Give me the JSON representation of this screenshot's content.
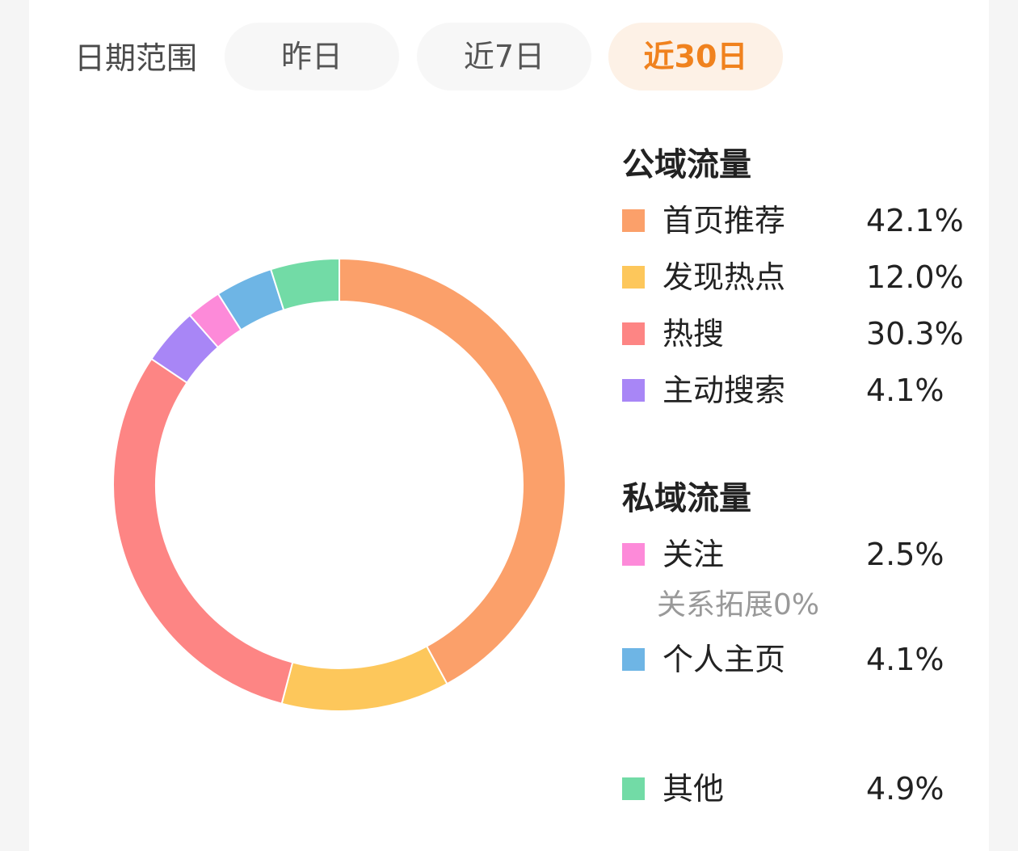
{
  "date_range": {
    "label": "日期范围",
    "options": [
      {
        "label": "昨日",
        "selected": false
      },
      {
        "label": "近7日",
        "selected": false
      },
      {
        "label": "近30日",
        "selected": true
      }
    ],
    "accent_color": "#f0821e"
  },
  "legend": {
    "public_title": "公域流量",
    "private_title": "私域流量",
    "items": [
      {
        "label": "首页推荐",
        "value": "42.1%",
        "color": "#fba06a"
      },
      {
        "label": "发现热点",
        "value": "12.0%",
        "color": "#fdc75b"
      },
      {
        "label": "热搜",
        "value": "30.3%",
        "color": "#fd8584"
      },
      {
        "label": "主动搜索",
        "value": "4.1%",
        "color": "#a886f6"
      },
      {
        "label": "关注",
        "value": "2.5%",
        "color": "#fd8ad9"
      },
      {
        "label": "个人主页",
        "value": "4.1%",
        "color": "#6eb5e5"
      },
      {
        "label": "其他",
        "value": "4.9%",
        "color": "#72dba6"
      }
    ],
    "sub_note": "关系拓展0%"
  },
  "chart_data": {
    "type": "pie",
    "donut": true,
    "categories": [
      "首页推荐",
      "发现热点",
      "热搜",
      "主动搜索",
      "关注",
      "个人主页",
      "其他"
    ],
    "values": [
      42.1,
      12.0,
      30.3,
      4.1,
      2.5,
      4.1,
      4.9
    ],
    "colors": [
      "#fba06a",
      "#fdc75b",
      "#fd8584",
      "#a886f6",
      "#fd8ad9",
      "#6eb5e5",
      "#72dba6"
    ],
    "start": "top",
    "direction": "clockwise"
  }
}
